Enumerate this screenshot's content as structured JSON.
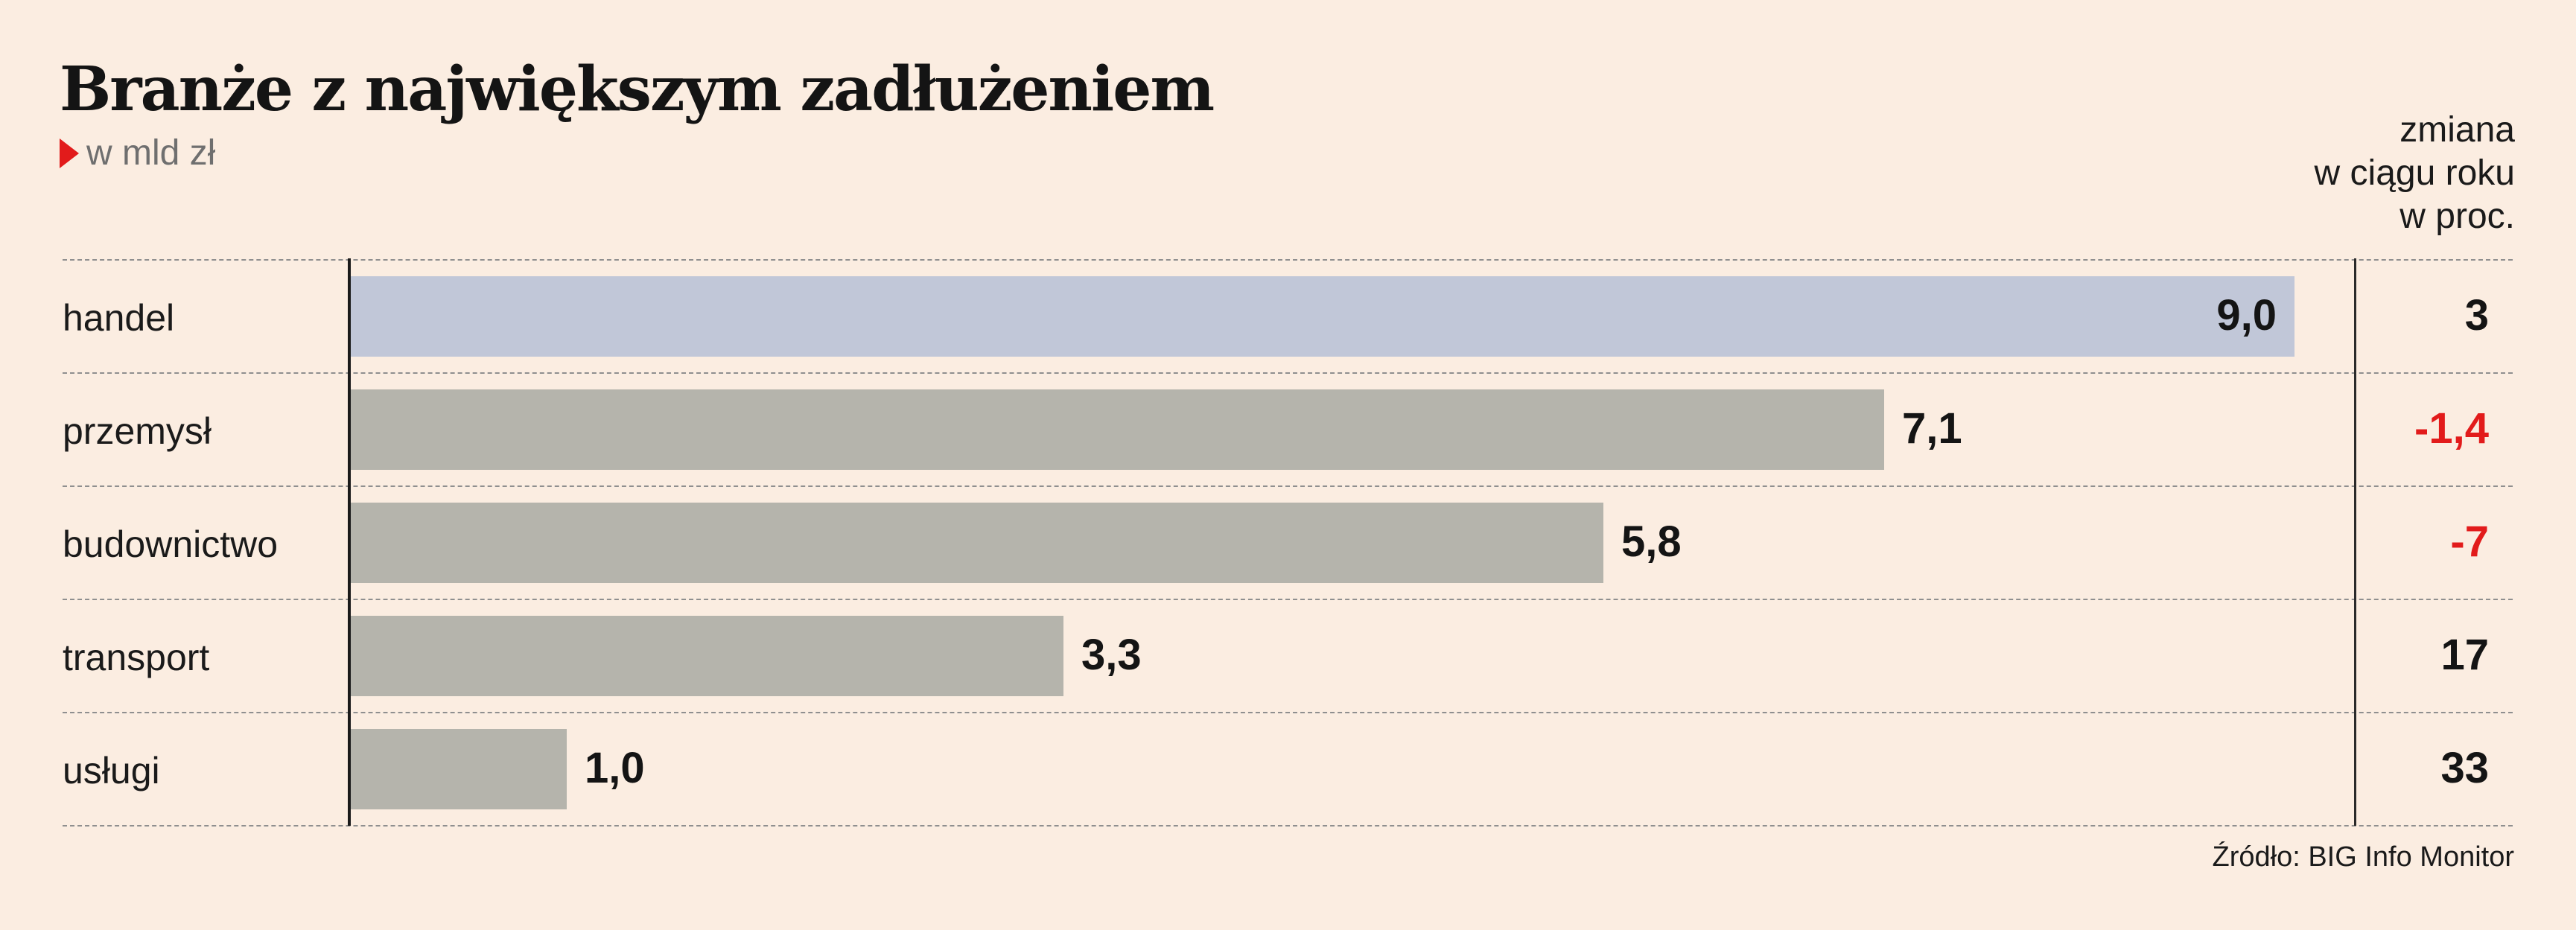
{
  "chart_data": {
    "type": "bar",
    "orientation": "horizontal",
    "title": "Branże z największym zadłużeniem",
    "subtitle": "w mld zł",
    "categories": [
      "handel",
      "przemysł",
      "budownictwo",
      "transport",
      "usługi"
    ],
    "values": [
      9.0,
      7.1,
      5.8,
      3.3,
      1.0
    ],
    "value_labels": [
      "9,0",
      "7,1",
      "5,8",
      "3,3",
      "1,0"
    ],
    "highlight_index": 0,
    "change_header": [
      "zmiana",
      "w ciągu roku",
      "w proc."
    ],
    "change_values": [
      "3",
      "-1,4",
      "-7",
      "17",
      "33"
    ],
    "change_numeric": [
      3,
      -1.4,
      -7,
      17,
      33
    ],
    "source": "Źródło: BIG Info Monitor",
    "xlim": [
      0,
      9.0
    ],
    "grid": "dashed horizontal separators",
    "colors": {
      "bar": "#b5b4ac",
      "bar_highlight": "#c1c7d8",
      "negative": "#e21b1b",
      "positive": "#141414",
      "background": "#fbede1",
      "marker": "#e21b1b"
    }
  }
}
